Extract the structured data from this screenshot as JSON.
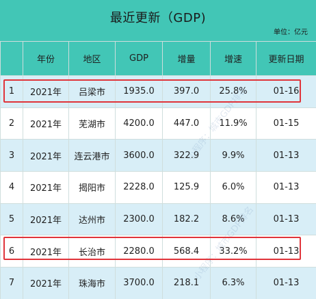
{
  "header": {
    "title": "最近更新（GDP)",
    "unit": "单位：亿元",
    "columns": [
      "",
      "年份",
      "地区",
      "GDP",
      "增量",
      "增速",
      "更新日期"
    ]
  },
  "rows": [
    {
      "idx": "1",
      "year": "2021年",
      "region": "吕梁市",
      "gdp": "1935.0",
      "inc": "397.0",
      "rate": "25.8%",
      "date": "01-16"
    },
    {
      "idx": "2",
      "year": "2021年",
      "region": "芜湖市",
      "gdp": "4200.0",
      "inc": "447.0",
      "rate": "11.9%",
      "date": "01-15"
    },
    {
      "idx": "3",
      "year": "2021年",
      "region": "连云港市",
      "gdp": "3600.0",
      "inc": "322.9",
      "rate": "9.9%",
      "date": "01-13"
    },
    {
      "idx": "4",
      "year": "2021年",
      "region": "揭阳市",
      "gdp": "2228.0",
      "inc": "125.9",
      "rate": "6.0%",
      "date": "01-13"
    },
    {
      "idx": "5",
      "year": "2021年",
      "region": "达州市",
      "gdp": "2300.0",
      "inc": "182.2",
      "rate": "8.6%",
      "date": "01-13"
    },
    {
      "idx": "6",
      "year": "2021年",
      "region": "长治市",
      "gdp": "2280.0",
      "inc": "568.4",
      "rate": "33.2%",
      "date": "01-13"
    },
    {
      "idx": "7",
      "year": "2021年",
      "region": "珠海市",
      "gdp": "3700.0",
      "inc": "218.1",
      "rate": "6.3%",
      "date": "01-13"
    }
  ],
  "watermark": "小程序：城市GDP排名",
  "colors": {
    "header_bg": "#42c6b6",
    "highlight": "#e0343a",
    "row_alt": "#d8eef7"
  }
}
